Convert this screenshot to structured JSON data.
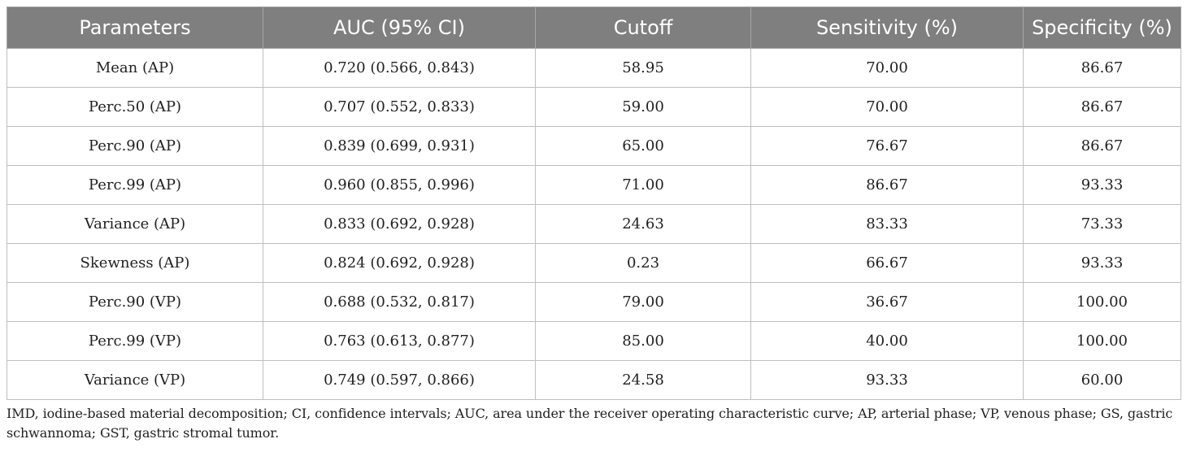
{
  "table": {
    "headers": [
      "Parameters",
      "AUC (95% CI)",
      "Cutoff",
      "Sensitivity (%)",
      "Specificity (%)"
    ],
    "rows": [
      [
        "Mean (AP)",
        "0.720 (0.566, 0.843)",
        "58.95",
        "70.00",
        "86.67"
      ],
      [
        "Perc.50 (AP)",
        "0.707 (0.552, 0.833)",
        "59.00",
        "70.00",
        "86.67"
      ],
      [
        "Perc.90 (AP)",
        "0.839 (0.699, 0.931)",
        "65.00",
        "76.67",
        "86.67"
      ],
      [
        "Perc.99 (AP)",
        "0.960 (0.855, 0.996)",
        "71.00",
        "86.67",
        "93.33"
      ],
      [
        "Variance (AP)",
        "0.833 (0.692, 0.928)",
        "24.63",
        "83.33",
        "73.33"
      ],
      [
        "Skewness (AP)",
        "0.824 (0.692, 0.928)",
        "0.23",
        "66.67",
        "93.33"
      ],
      [
        "Perc.90 (VP)",
        "0.688 (0.532, 0.817)",
        "79.00",
        "36.67",
        "100.00"
      ],
      [
        "Perc.99 (VP)",
        "0.763 (0.613, 0.877)",
        "85.00",
        "40.00",
        "100.00"
      ],
      [
        "Variance (VP)",
        "0.749 (0.597, 0.866)",
        "24.58",
        "93.33",
        "60.00"
      ]
    ]
  },
  "footnote": "IMD, iodine-based material decomposition; CI, confidence intervals; AUC, area under the receiver operating characteristic curve; AP, arterial phase; VP, venous phase; GS, gastric schwannoma; GST, gastric stromal tumor.",
  "colors": {
    "header_bg": "#7f7f7f",
    "header_text": "#ffffff",
    "border": "#bfbfbf"
  }
}
